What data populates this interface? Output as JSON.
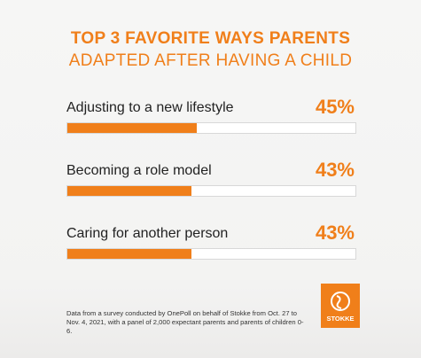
{
  "chart_data": {
    "type": "bar",
    "orientation": "horizontal",
    "title": "TOP 3 FAVORITE WAYS PARENTS",
    "subtitle": "ADAPTED AFTER HAVING A CHILD",
    "categories": [
      "Adjusting to a new lifestyle",
      "Becoming a role model",
      "Caring for another person"
    ],
    "values": [
      45,
      43,
      43
    ],
    "value_labels": [
      "45%",
      "43%",
      "43%"
    ],
    "color": "#f07f1a",
    "xlim": [
      0,
      100
    ],
    "note": "Data from a survey conducted by OnePoll on behalf of Stokke from Oct. 27 to Nov. 4, 2021, with a panel of 2,000 expectant parents and parents of children 0-6.",
    "brand": "STOKKE"
  }
}
